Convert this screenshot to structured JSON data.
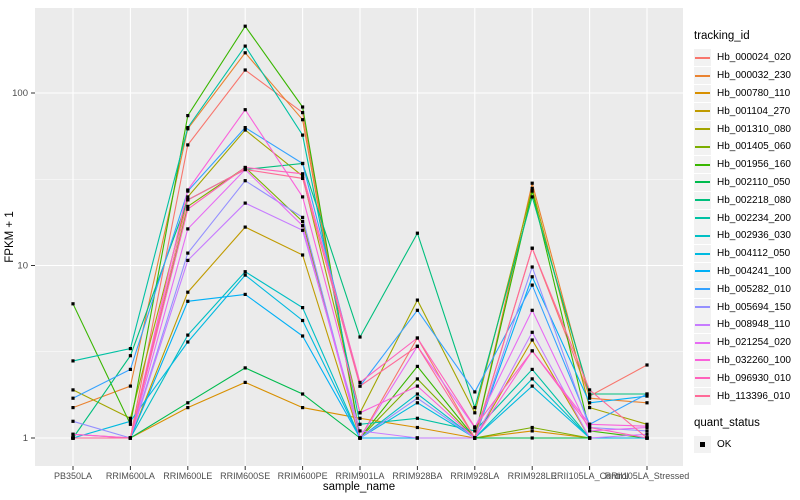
{
  "figure": {
    "ylabel": "FPKM + 1",
    "xlabel": "sample_name",
    "legend_title": "tracking_id",
    "quant_legend_title": "quant_status",
    "quant_legend_item": "OK",
    "panel_bg": "#EBEBEB",
    "grid_color": "#FFFFFF",
    "tick_label_color": "#4D4D4D",
    "point_color": "#000000",
    "key_bg": "#F2F2F2"
  },
  "chart_data": {
    "type": "line",
    "title": "",
    "xlabel": "sample_name",
    "ylabel": "FPKM + 1",
    "yscale": "log10",
    "ylim": [
      0.7,
      310
    ],
    "y_ticks": [
      1,
      10,
      100
    ],
    "y_minor_ticks": [
      3.162,
      31.62
    ],
    "grid": true,
    "legend_position": "right",
    "legend_title": "tracking_id",
    "point_marker": "black-square",
    "quant_status": {
      "title": "quant_status",
      "items": [
        "OK"
      ]
    },
    "categories": [
      "PB350LA",
      "RRIM600LA",
      "RRIM600LE",
      "RRIM600SE",
      "RRIM600PE",
      "RRIM901LA",
      "RRIM928BA",
      "RRIM928LA",
      "RRIM928LE",
      "RRII105LA_Control",
      "RRII105LA_Stressed"
    ],
    "series": [
      {
        "name": "Hb_000024_020",
        "color": "#F8766D",
        "values": [
          1.05,
          1.0,
          50,
          136,
          77,
          1.0,
          3.8,
          1.0,
          12.6,
          1.75,
          2.65
        ]
      },
      {
        "name": "Hb_000032_230",
        "color": "#EA8331",
        "values": [
          1.5,
          2.0,
          62,
          171,
          70,
          1.0,
          1.0,
          1.0,
          30,
          1.7,
          1.6
        ]
      },
      {
        "name": "Hb_000780_110",
        "color": "#D89000",
        "values": [
          1.0,
          1.0,
          1.5,
          2.1,
          1.5,
          1.3,
          1.15,
          1.0,
          1.1,
          1.0,
          1.0
        ]
      },
      {
        "name": "Hb_001104_270",
        "color": "#C09B00",
        "values": [
          1.0,
          1.0,
          7.0,
          16.7,
          11.5,
          1.0,
          1.0,
          1.0,
          3.7,
          1.0,
          1.0
        ]
      },
      {
        "name": "Hb_001310_080",
        "color": "#A3A500",
        "values": [
          1.9,
          1.3,
          25,
          61,
          33,
          1.4,
          6.3,
          1.4,
          28,
          1.5,
          1.2
        ]
      },
      {
        "name": "Hb_001405_060",
        "color": "#7CAE00",
        "values": [
          1.0,
          1.0,
          22,
          37,
          18,
          1.0,
          2.2,
          1.0,
          1.15,
          1.0,
          1.0
        ]
      },
      {
        "name": "Hb_001956_160",
        "color": "#39B600",
        "values": [
          6.0,
          1.2,
          74,
          244,
          83,
          1.0,
          2.6,
          1.0,
          27,
          1.1,
          1.0
        ]
      },
      {
        "name": "Hb_002110_050",
        "color": "#00BB4E",
        "values": [
          1.0,
          1.0,
          1.6,
          2.55,
          1.8,
          1.0,
          1.0,
          1.0,
          1.0,
          1.0,
          1.0
        ]
      },
      {
        "name": "Hb_002218_080",
        "color": "#00BF7D",
        "values": [
          1.0,
          3.0,
          24,
          36,
          39,
          3.85,
          15.4,
          1.5,
          25,
          1.8,
          1.8
        ]
      },
      {
        "name": "Hb_002234_200",
        "color": "#00C1A3",
        "values": [
          2.8,
          3.3,
          63,
          187,
          57,
          1.2,
          1.3,
          1.1,
          2.5,
          1.0,
          1.0
        ]
      },
      {
        "name": "Hb_002936_030",
        "color": "#00BFC4",
        "values": [
          1.0,
          1.0,
          3.95,
          9.2,
          5.7,
          1.0,
          1.8,
          1.0,
          2.2,
          1.0,
          1.0
        ]
      },
      {
        "name": "Hb_004112_050",
        "color": "#00BAE0",
        "values": [
          1.0,
          1.25,
          3.6,
          8.8,
          4.8,
          1.0,
          1.6,
          1.0,
          2.0,
          1.0,
          1.0
        ]
      },
      {
        "name": "Hb_004241_100",
        "color": "#00B0F6",
        "values": [
          1.0,
          1.0,
          6.2,
          6.8,
          3.9,
          1.0,
          1.0,
          1.0,
          8.6,
          1.6,
          1.75
        ]
      },
      {
        "name": "Hb_005282_010",
        "color": "#35A2FF",
        "values": [
          1.7,
          2.5,
          27,
          63,
          39,
          2.0,
          5.5,
          1.85,
          7.7,
          1.2,
          1.8
        ]
      },
      {
        "name": "Hb_005694_150",
        "color": "#9590FF",
        "values": [
          1.25,
          1.0,
          11.8,
          31,
          19,
          1.0,
          1.7,
          1.0,
          9.8,
          1.15,
          1.1
        ]
      },
      {
        "name": "Hb_008948_110",
        "color": "#C77CFF",
        "values": [
          1.0,
          1.0,
          10.7,
          23,
          16,
          1.1,
          1.0,
          1.0,
          4.1,
          1.0,
          1.05
        ]
      },
      {
        "name": "Hb_021254_020",
        "color": "#E76BF3",
        "values": [
          1.0,
          1.0,
          16.3,
          36,
          17,
          1.0,
          3.4,
          1.15,
          5.5,
          1.1,
          1.15
        ]
      },
      {
        "name": "Hb_032260_100",
        "color": "#FA62DB",
        "values": [
          1.05,
          1.0,
          27.4,
          80,
          25,
          1.4,
          2.0,
          1.0,
          3.2,
          1.2,
          1.17
        ]
      },
      {
        "name": "Hb_096930_010",
        "color": "#FF62BC",
        "values": [
          1.0,
          1.0,
          21.2,
          37,
          34,
          2.1,
          3.8,
          1.16,
          3.2,
          1.15,
          1.0
        ]
      },
      {
        "name": "Hb_113396_010",
        "color": "#FF6A98",
        "values": [
          1.0,
          1.0,
          24,
          36,
          32,
          2.0,
          3.4,
          1.0,
          12.6,
          1.9,
          1.0
        ]
      }
    ]
  }
}
